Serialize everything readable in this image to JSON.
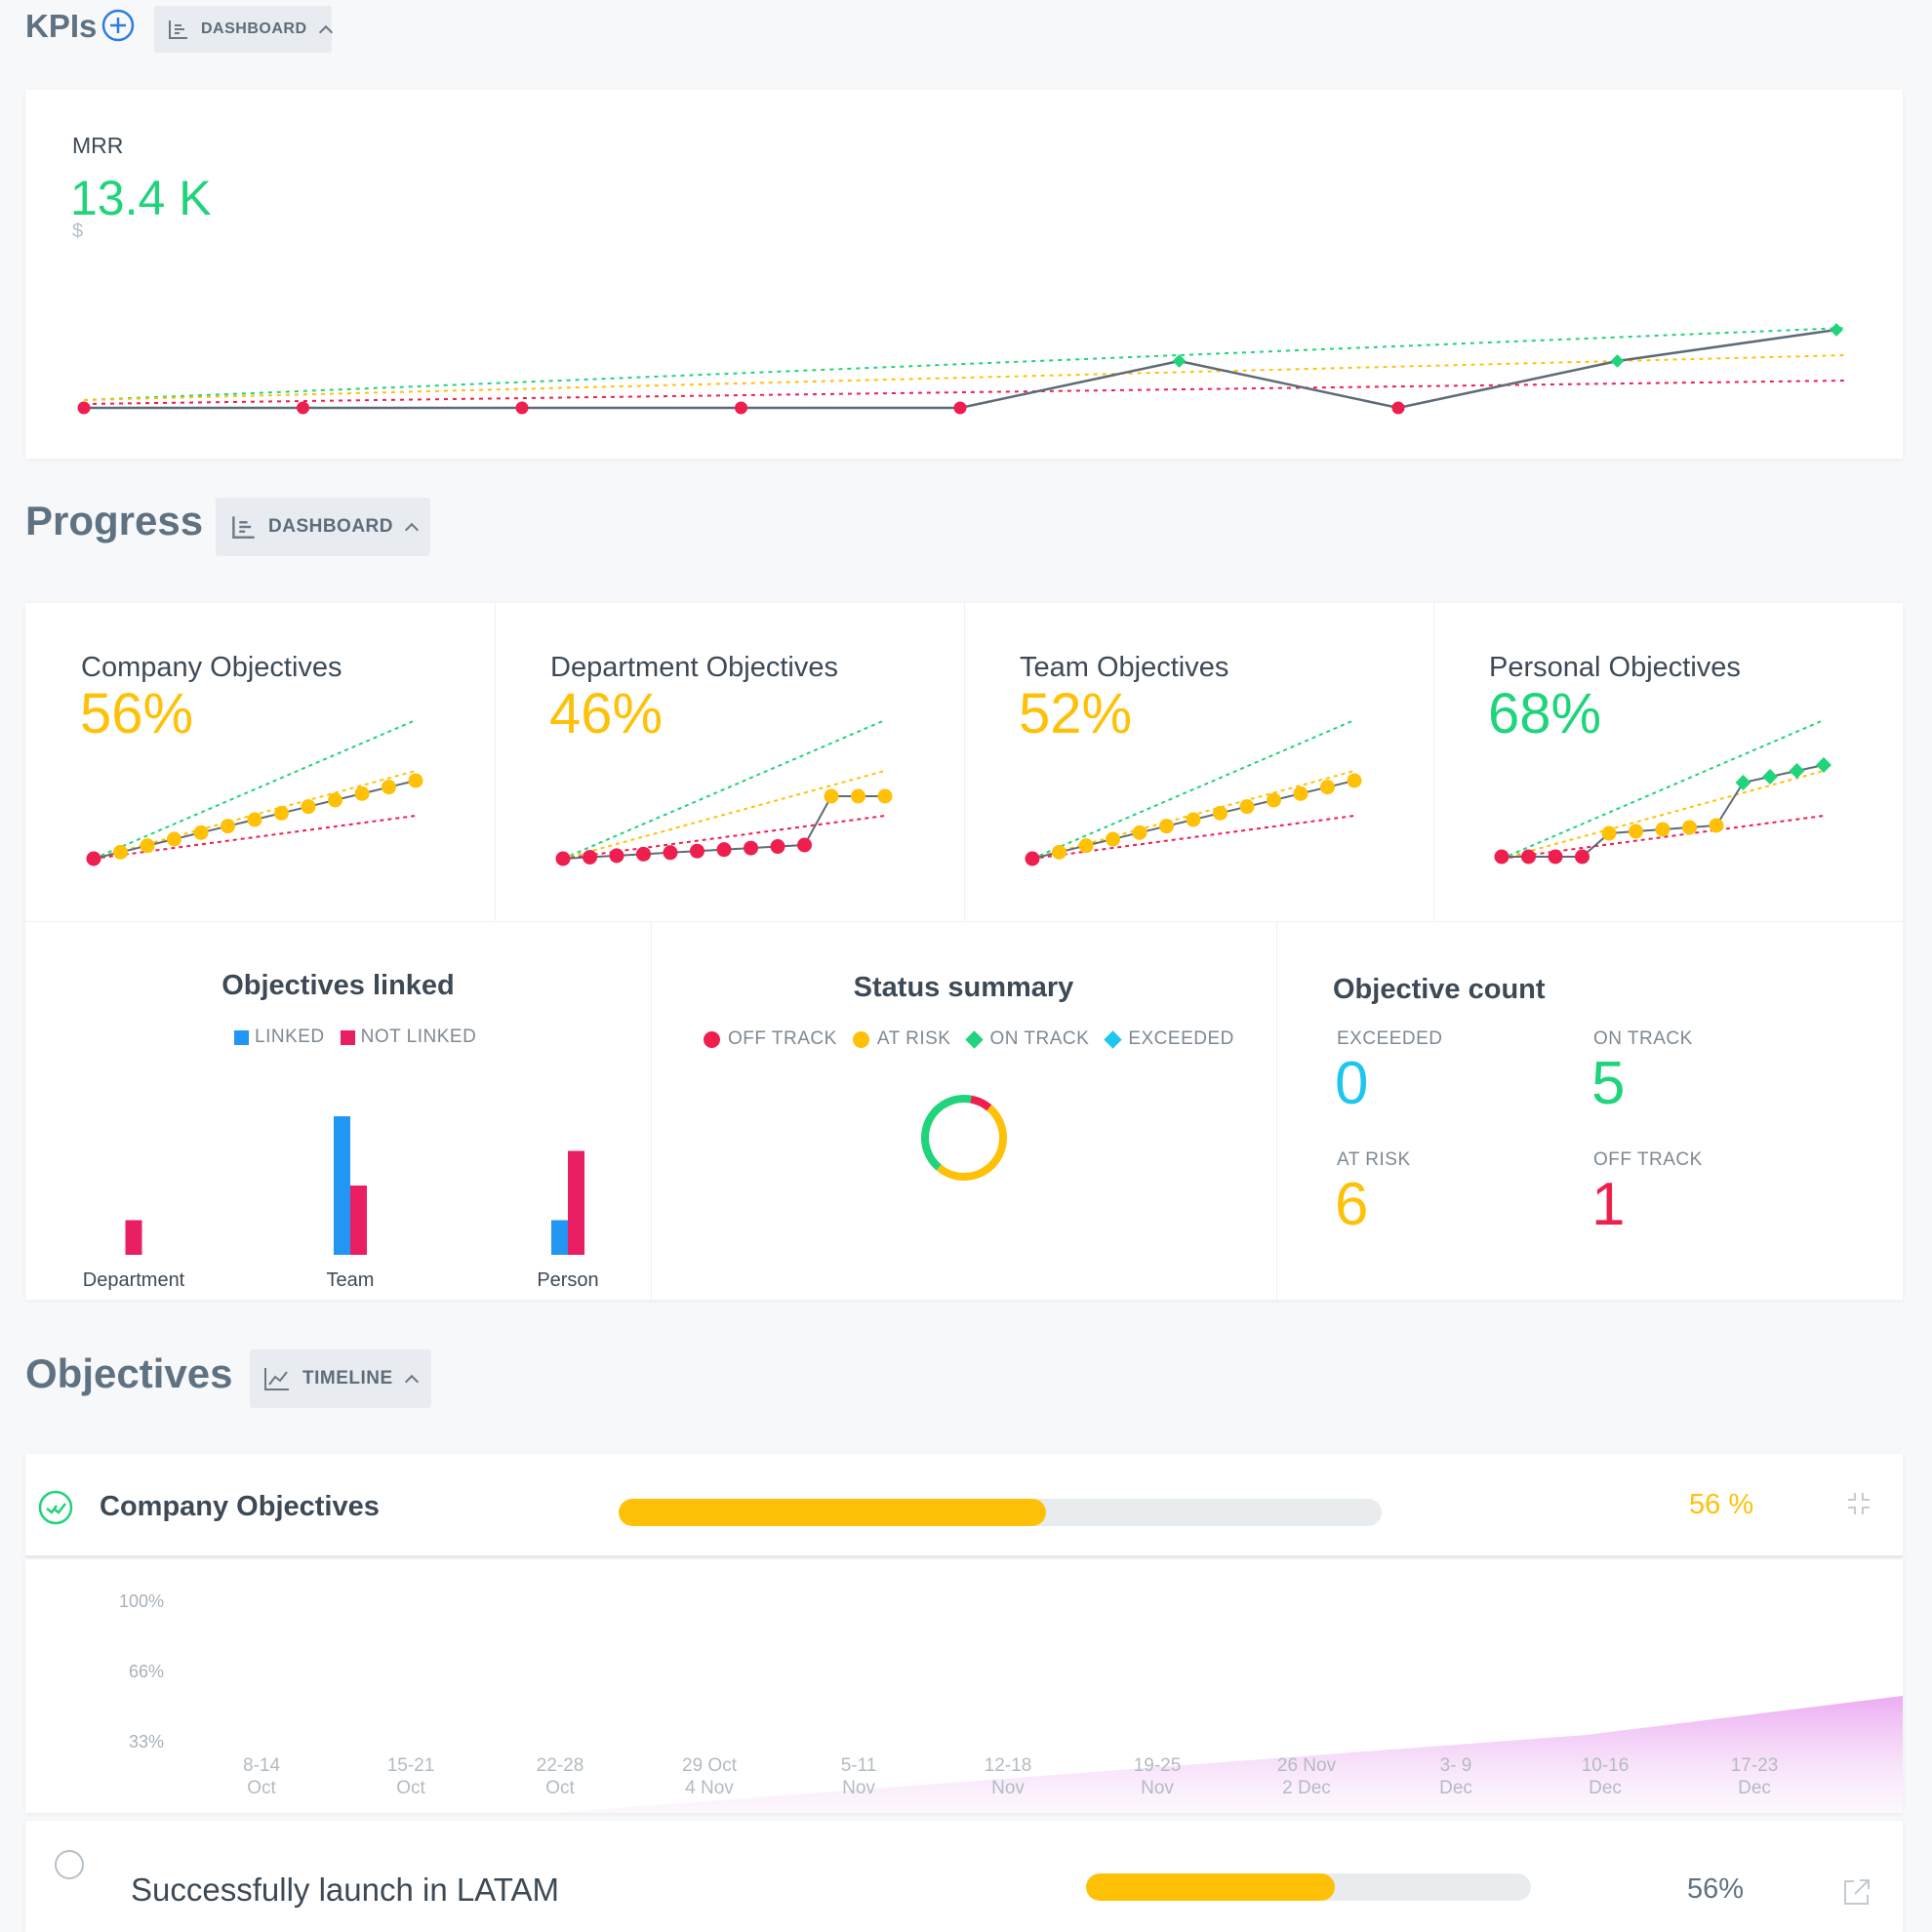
{
  "kpis": {
    "title": "KPIs",
    "view_label": "DASHBOARD",
    "mrr": {
      "label": "MRR",
      "value": "13.4 K",
      "unit": "$"
    }
  },
  "kpi_chart": {
    "type": "line",
    "points": [
      {
        "status": "off_track"
      },
      {
        "status": "off_track"
      },
      {
        "status": "off_track"
      },
      {
        "status": "off_track"
      },
      {
        "status": "off_track"
      },
      {
        "status": "on_track"
      },
      {
        "status": "off_track"
      },
      {
        "status": "on_track"
      },
      {
        "status": "on_track"
      }
    ]
  },
  "progress": {
    "title": "Progress",
    "view_label": "DASHBOARD",
    "cards": [
      {
        "title": "Company Objectives",
        "pct": "56%",
        "color": "#ffc107",
        "dots": [
          "r",
          "y",
          "y",
          "y",
          "y",
          "y",
          "y",
          "y",
          "y",
          "y",
          "y",
          "y",
          "y"
        ]
      },
      {
        "title": "Department Objectives",
        "pct": "46%",
        "color": "#ffc107",
        "dots": [
          "r",
          "r",
          "r",
          "r",
          "r",
          "r",
          "r",
          "r",
          "r",
          "r",
          "y",
          "y",
          "y"
        ]
      },
      {
        "title": "Team Objectives",
        "pct": "52%",
        "color": "#ffc107",
        "dots": [
          "r",
          "y",
          "y",
          "y",
          "y",
          "y",
          "y",
          "y",
          "y",
          "y",
          "y",
          "y",
          "y"
        ]
      },
      {
        "title": "Personal Objectives",
        "pct": "68%",
        "color": "#1fd47a",
        "dots": [
          "r",
          "r",
          "r",
          "r",
          "y",
          "y",
          "y",
          "y",
          "y",
          "g",
          "g",
          "g",
          "g"
        ]
      }
    ],
    "objectives_linked": {
      "title": "Objectives linked",
      "legend_linked": "LINKED",
      "legend_not_linked": "NOT LINKED",
      "chart_data": {
        "type": "bar",
        "categories": [
          "Department",
          "Team",
          "Person"
        ],
        "series": [
          {
            "name": "LINKED",
            "values": [
              0,
              4,
              1
            ]
          },
          {
            "name": "NOT LINKED",
            "values": [
              1,
              2,
              3
            ]
          }
        ]
      }
    },
    "status_summary": {
      "title": "Status summary",
      "legend": [
        "OFF TRACK",
        "AT RISK",
        "ON TRACK",
        "EXCEEDED"
      ],
      "chart_data": {
        "type": "pie",
        "labels": [
          "OFF TRACK",
          "AT RISK",
          "ON TRACK",
          "EXCEEDED"
        ],
        "values": [
          1,
          6,
          5,
          0
        ]
      }
    },
    "objective_count": {
      "title": "Objective count",
      "exceeded_label": "EXCEEDED",
      "exceeded_value": "0",
      "on_track_label": "ON TRACK",
      "on_track_value": "5",
      "at_risk_label": "AT RISK",
      "at_risk_value": "6",
      "off_track_label": "OFF TRACK",
      "off_track_value": "1"
    }
  },
  "objectives": {
    "title": "Objectives",
    "view_label": "TIMELINE",
    "company": {
      "label": "Company Objectives",
      "progress": 0.56,
      "pct_text": "56 %"
    },
    "timeline": {
      "chart_data": {
        "type": "area",
        "y_ticks": [
          "100%",
          "66%",
          "33%"
        ],
        "x_ticks": [
          [
            "8-14",
            "Oct"
          ],
          [
            "15-21",
            "Oct"
          ],
          [
            "22-28",
            "Oct"
          ],
          [
            "29 Oct",
            "4 Nov"
          ],
          [
            "5-11",
            "Nov"
          ],
          [
            "12-18",
            "Nov"
          ],
          [
            "19-25",
            "Nov"
          ],
          [
            "26 Nov",
            "2 Dec"
          ],
          [
            "3- 9",
            "Dec"
          ],
          [
            "10-16",
            "Dec"
          ],
          [
            "17-23",
            "Dec"
          ]
        ]
      }
    },
    "items": [
      {
        "label": "Successfully launch in LATAM",
        "progress": 0.56,
        "pct_text": "56%"
      }
    ]
  },
  "colors": {
    "off_track": "#ee1f4f",
    "at_risk": "#ffc107",
    "on_track": "#1fd47a",
    "exceeded": "#1ec6ee",
    "linked": "#2196f3",
    "not_linked": "#e91e63"
  }
}
